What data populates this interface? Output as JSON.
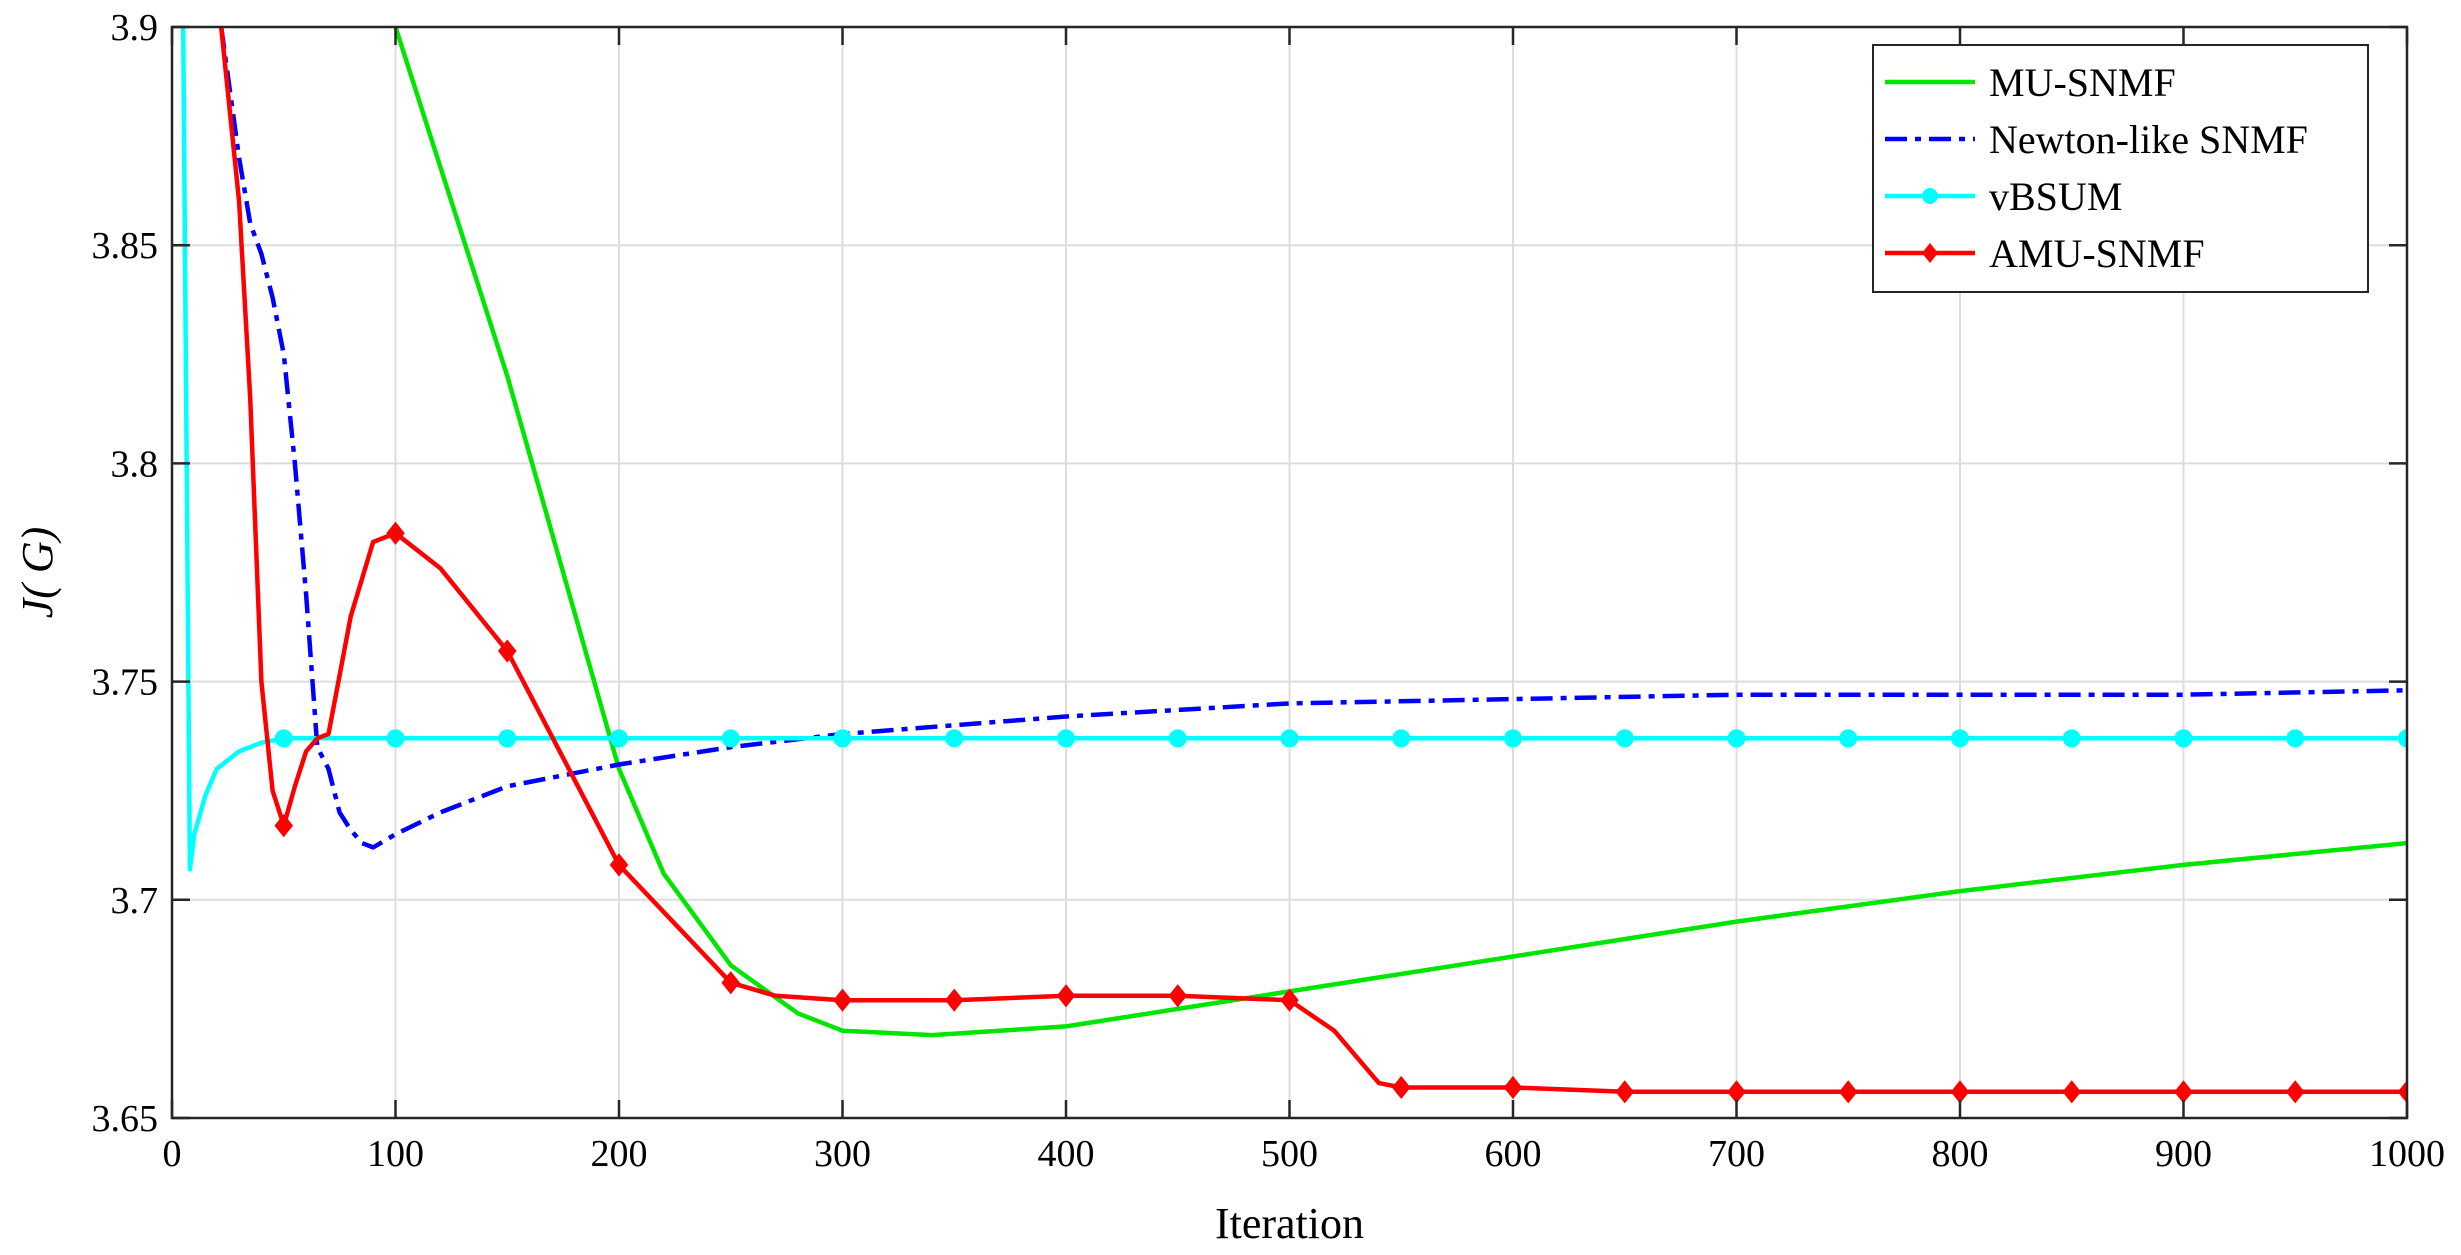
{
  "chart_data": {
    "type": "line",
    "xlabel": "Iteration",
    "ylabel": "J( G)",
    "xlim": [
      0,
      1000
    ],
    "ylim": [
      3.65,
      3.9
    ],
    "xticks": [
      0,
      100,
      200,
      300,
      400,
      500,
      600,
      700,
      800,
      900,
      1000
    ],
    "yticks": [
      3.65,
      3.7,
      3.75,
      3.8,
      3.85,
      3.9
    ],
    "ytick_labels": [
      "3.65",
      "3.7",
      "3.75",
      "3.8",
      "3.85",
      "3.9"
    ],
    "grid": true,
    "legend_position": "top-right",
    "series": [
      {
        "name": "MU-SNMF",
        "color": "#00e600",
        "line_style": "solid",
        "marker": "none",
        "x": [
          100,
          150,
          200,
          220,
          250,
          280,
          300,
          340,
          400,
          450,
          500,
          600,
          700,
          800,
          900,
          1000
        ],
        "y": [
          3.9,
          3.82,
          3.73,
          3.706,
          3.685,
          3.674,
          3.67,
          3.669,
          3.671,
          3.675,
          3.679,
          3.687,
          3.695,
          3.702,
          3.708,
          3.713
        ]
      },
      {
        "name": "Newton-like SNMF",
        "color": "#0000ff",
        "line_style": "dashdot",
        "marker": "none",
        "x": [
          22,
          30,
          35,
          40,
          45,
          50,
          55,
          60,
          65,
          70,
          75,
          80,
          85,
          90,
          100,
          120,
          150,
          200,
          250,
          300,
          400,
          500,
          600,
          700,
          800,
          900,
          1000
        ],
        "y": [
          3.9,
          3.87,
          3.855,
          3.848,
          3.838,
          3.825,
          3.8,
          3.77,
          3.735,
          3.73,
          3.72,
          3.716,
          3.713,
          3.712,
          3.715,
          3.72,
          3.726,
          3.731,
          3.735,
          3.738,
          3.742,
          3.745,
          3.746,
          3.747,
          3.747,
          3.747,
          3.748
        ]
      },
      {
        "name": "vBSUM",
        "color": "#00ffff",
        "line_style": "solid",
        "marker": "circle",
        "x": [
          5,
          8,
          10,
          15,
          20,
          30,
          40,
          50,
          100,
          150,
          200,
          250,
          300,
          350,
          400,
          450,
          500,
          550,
          600,
          650,
          700,
          750,
          800,
          850,
          900,
          950,
          1000
        ],
        "y": [
          3.9,
          3.707,
          3.715,
          3.724,
          3.73,
          3.734,
          3.736,
          3.737,
          3.737,
          3.737,
          3.737,
          3.737,
          3.737,
          3.737,
          3.737,
          3.737,
          3.737,
          3.737,
          3.737,
          3.737,
          3.737,
          3.737,
          3.737,
          3.737,
          3.737,
          3.737,
          3.737
        ],
        "marker_x": [
          50,
          100,
          150,
          200,
          250,
          300,
          350,
          400,
          450,
          500,
          550,
          600,
          650,
          700,
          750,
          800,
          850,
          900,
          950,
          1000
        ]
      },
      {
        "name": "AMU-SNMF",
        "color": "#ff0000",
        "line_style": "solid",
        "marker": "diamond",
        "x": [
          22,
          30,
          35,
          40,
          45,
          50,
          55,
          60,
          65,
          70,
          80,
          90,
          100,
          120,
          150,
          200,
          250,
          270,
          300,
          350,
          400,
          450,
          500,
          520,
          540,
          550,
          600,
          650,
          700,
          750,
          800,
          850,
          900,
          950,
          1000
        ],
        "y": [
          3.9,
          3.86,
          3.815,
          3.75,
          3.725,
          3.717,
          3.726,
          3.734,
          3.737,
          3.738,
          3.765,
          3.782,
          3.784,
          3.776,
          3.757,
          3.708,
          3.681,
          3.678,
          3.677,
          3.677,
          3.678,
          3.678,
          3.677,
          3.67,
          3.658,
          3.657,
          3.657,
          3.656,
          3.656,
          3.656,
          3.656,
          3.656,
          3.656,
          3.656,
          3.656
        ],
        "marker_x": [
          50,
          100,
          150,
          200,
          250,
          300,
          350,
          400,
          450,
          500,
          550,
          600,
          650,
          700,
          750,
          800,
          850,
          900,
          950,
          1000
        ]
      }
    ]
  }
}
